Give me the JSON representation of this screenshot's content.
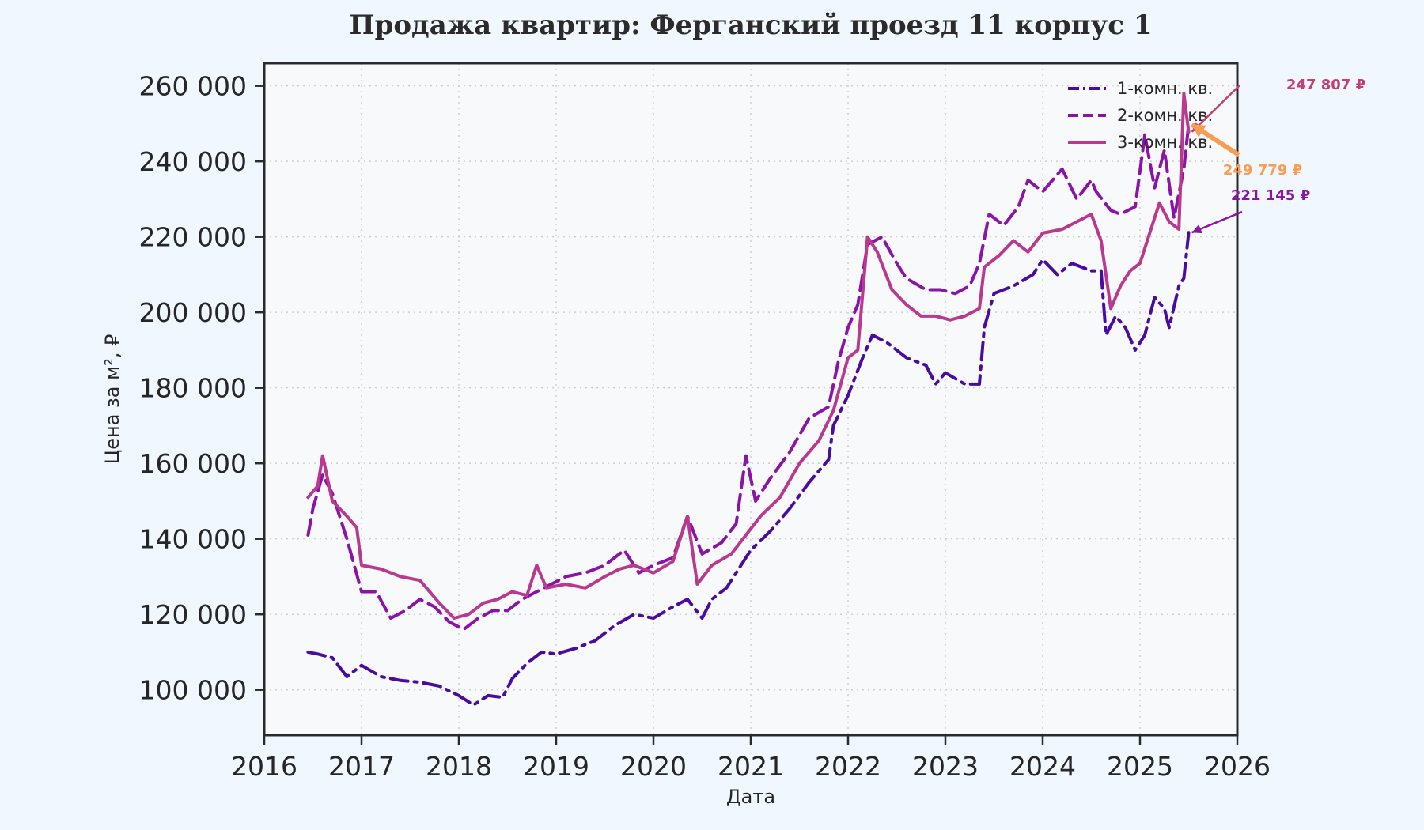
{
  "chart_data": {
    "type": "line",
    "title": "Продажа квартир: Ферганский проезд 11 корпус 1",
    "xlabel": "Дата",
    "ylabel": "Цена за м², ₽",
    "xlim": [
      2016,
      2026
    ],
    "ylim": [
      88000,
      266000
    ],
    "x_ticks": [
      "2016",
      "2017",
      "2018",
      "2019",
      "2020",
      "2021",
      "2022",
      "2023",
      "2024",
      "2025",
      "2026"
    ],
    "y_ticks": [
      "100 000",
      "120 000",
      "140 000",
      "160 000",
      "180 000",
      "200 000",
      "220 000",
      "240 000",
      "260 000"
    ],
    "grid": true,
    "legend_position": "top-right",
    "series": [
      {
        "name": "1-комн. кв.",
        "color": "#4a0ca0",
        "dash": "dashdot",
        "points": [
          [
            2016.45,
            110000
          ],
          [
            2016.55,
            109500
          ],
          [
            2016.7,
            108500
          ],
          [
            2016.85,
            103500
          ],
          [
            2017.0,
            106500
          ],
          [
            2017.2,
            103500
          ],
          [
            2017.4,
            102500
          ],
          [
            2017.6,
            102000
          ],
          [
            2017.8,
            101000
          ],
          [
            2018.0,
            98500
          ],
          [
            2018.15,
            96000
          ],
          [
            2018.3,
            98500
          ],
          [
            2018.45,
            98000
          ],
          [
            2018.55,
            103000
          ],
          [
            2018.7,
            107000
          ],
          [
            2018.85,
            110000
          ],
          [
            2019.0,
            109500
          ],
          [
            2019.2,
            111000
          ],
          [
            2019.4,
            113000
          ],
          [
            2019.6,
            117000
          ],
          [
            2019.8,
            120000
          ],
          [
            2020.0,
            119000
          ],
          [
            2020.2,
            122000
          ],
          [
            2020.35,
            124000
          ],
          [
            2020.5,
            119000
          ],
          [
            2020.6,
            124000
          ],
          [
            2020.75,
            127000
          ],
          [
            2020.9,
            133000
          ],
          [
            2021.0,
            137000
          ],
          [
            2021.2,
            142000
          ],
          [
            2021.4,
            148000
          ],
          [
            2021.6,
            155000
          ],
          [
            2021.8,
            161000
          ],
          [
            2021.85,
            170000
          ],
          [
            2022.0,
            178000
          ],
          [
            2022.15,
            188000
          ],
          [
            2022.25,
            194000
          ],
          [
            2022.4,
            192000
          ],
          [
            2022.6,
            188000
          ],
          [
            2022.8,
            186000
          ],
          [
            2022.9,
            181000
          ],
          [
            2023.0,
            184000
          ],
          [
            2023.2,
            181000
          ],
          [
            2023.35,
            181000
          ],
          [
            2023.4,
            196000
          ],
          [
            2023.5,
            205000
          ],
          [
            2023.7,
            207000
          ],
          [
            2023.9,
            210000
          ],
          [
            2024.0,
            214000
          ],
          [
            2024.15,
            210000
          ],
          [
            2024.3,
            213000
          ],
          [
            2024.5,
            211000
          ],
          [
            2024.6,
            211000
          ],
          [
            2024.65,
            194000
          ],
          [
            2024.75,
            199000
          ],
          [
            2024.85,
            196000
          ],
          [
            2024.95,
            190000
          ],
          [
            2025.05,
            194000
          ],
          [
            2025.15,
            204000
          ],
          [
            2025.25,
            201000
          ],
          [
            2025.3,
            196000
          ],
          [
            2025.4,
            207000
          ],
          [
            2025.45,
            209000
          ],
          [
            2025.5,
            221145
          ]
        ]
      },
      {
        "name": "2-комн. кв.",
        "color": "#8a14a8",
        "dash": "dashed",
        "points": [
          [
            2016.45,
            141000
          ],
          [
            2016.5,
            148000
          ],
          [
            2016.6,
            157000
          ],
          [
            2016.7,
            152000
          ],
          [
            2016.85,
            140000
          ],
          [
            2017.0,
            126000
          ],
          [
            2017.15,
            126000
          ],
          [
            2017.3,
            119000
          ],
          [
            2017.45,
            121000
          ],
          [
            2017.6,
            124000
          ],
          [
            2017.75,
            122000
          ],
          [
            2017.9,
            118000
          ],
          [
            2018.05,
            116000
          ],
          [
            2018.2,
            119000
          ],
          [
            2018.35,
            121000
          ],
          [
            2018.5,
            121000
          ],
          [
            2018.65,
            124000
          ],
          [
            2018.8,
            126000
          ],
          [
            2018.95,
            128000
          ],
          [
            2019.1,
            130000
          ],
          [
            2019.3,
            131000
          ],
          [
            2019.5,
            133000
          ],
          [
            2019.7,
            137000
          ],
          [
            2019.85,
            131000
          ],
          [
            2020.0,
            133000
          ],
          [
            2020.2,
            135000
          ],
          [
            2020.35,
            146000
          ],
          [
            2020.5,
            136000
          ],
          [
            2020.7,
            139000
          ],
          [
            2020.85,
            144000
          ],
          [
            2020.95,
            162000
          ],
          [
            2021.05,
            150000
          ],
          [
            2021.2,
            156000
          ],
          [
            2021.4,
            163000
          ],
          [
            2021.6,
            172000
          ],
          [
            2021.8,
            175000
          ],
          [
            2021.9,
            187000
          ],
          [
            2022.0,
            196000
          ],
          [
            2022.1,
            202000
          ],
          [
            2022.2,
            218000
          ],
          [
            2022.35,
            220000
          ],
          [
            2022.5,
            213000
          ],
          [
            2022.6,
            209000
          ],
          [
            2022.8,
            206000
          ],
          [
            2022.95,
            206000
          ],
          [
            2023.1,
            205000
          ],
          [
            2023.25,
            207000
          ],
          [
            2023.35,
            213000
          ],
          [
            2023.45,
            226000
          ],
          [
            2023.6,
            223000
          ],
          [
            2023.75,
            228000
          ],
          [
            2023.85,
            235000
          ],
          [
            2024.0,
            232000
          ],
          [
            2024.2,
            238000
          ],
          [
            2024.35,
            230000
          ],
          [
            2024.5,
            235000
          ],
          [
            2024.55,
            232000
          ],
          [
            2024.7,
            227000
          ],
          [
            2024.8,
            226000
          ],
          [
            2024.95,
            228000
          ],
          [
            2025.05,
            247000
          ],
          [
            2025.15,
            233000
          ],
          [
            2025.25,
            243000
          ],
          [
            2025.35,
            225000
          ],
          [
            2025.45,
            238000
          ],
          [
            2025.5,
            249779
          ]
        ]
      },
      {
        "name": "3-комн. кв.",
        "color": "#b8398e",
        "dash": "solid",
        "points": [
          [
            2016.45,
            151000
          ],
          [
            2016.55,
            154000
          ],
          [
            2016.6,
            162000
          ],
          [
            2016.7,
            150000
          ],
          [
            2016.85,
            146000
          ],
          [
            2016.95,
            143000
          ],
          [
            2017.0,
            133000
          ],
          [
            2017.2,
            132000
          ],
          [
            2017.4,
            130000
          ],
          [
            2017.6,
            129000
          ],
          [
            2017.8,
            123000
          ],
          [
            2017.95,
            119000
          ],
          [
            2018.1,
            120000
          ],
          [
            2018.25,
            123000
          ],
          [
            2018.4,
            124000
          ],
          [
            2018.55,
            126000
          ],
          [
            2018.7,
            125000
          ],
          [
            2018.8,
            133000
          ],
          [
            2018.9,
            127000
          ],
          [
            2019.1,
            128000
          ],
          [
            2019.3,
            127000
          ],
          [
            2019.5,
            130000
          ],
          [
            2019.65,
            132000
          ],
          [
            2019.8,
            133000
          ],
          [
            2020.0,
            131000
          ],
          [
            2020.2,
            134000
          ],
          [
            2020.35,
            146000
          ],
          [
            2020.45,
            128000
          ],
          [
            2020.6,
            133000
          ],
          [
            2020.8,
            136000
          ],
          [
            2020.95,
            141000
          ],
          [
            2021.1,
            146000
          ],
          [
            2021.3,
            151000
          ],
          [
            2021.5,
            160000
          ],
          [
            2021.7,
            166000
          ],
          [
            2021.85,
            174000
          ],
          [
            2022.0,
            188000
          ],
          [
            2022.1,
            190000
          ],
          [
            2022.2,
            220000
          ],
          [
            2022.3,
            216000
          ],
          [
            2022.45,
            206000
          ],
          [
            2022.6,
            202000
          ],
          [
            2022.75,
            199000
          ],
          [
            2022.9,
            199000
          ],
          [
            2023.05,
            198000
          ],
          [
            2023.2,
            199000
          ],
          [
            2023.35,
            201000
          ],
          [
            2023.4,
            212000
          ],
          [
            2023.55,
            215000
          ],
          [
            2023.7,
            219000
          ],
          [
            2023.85,
            216000
          ],
          [
            2024.0,
            221000
          ],
          [
            2024.2,
            222000
          ],
          [
            2024.35,
            224000
          ],
          [
            2024.5,
            226000
          ],
          [
            2024.6,
            219000
          ],
          [
            2024.7,
            201000
          ],
          [
            2024.8,
            207000
          ],
          [
            2024.9,
            211000
          ],
          [
            2025.0,
            213000
          ],
          [
            2025.1,
            221000
          ],
          [
            2025.2,
            229000
          ],
          [
            2025.3,
            224000
          ],
          [
            2025.4,
            222000
          ],
          [
            2025.45,
            258000
          ],
          [
            2025.5,
            247807
          ]
        ]
      }
    ],
    "annotations": [
      {
        "text": "247 807 ₽",
        "color": "#c53f74",
        "series": "3-комн. кв.",
        "x": 2025.5,
        "y": 247807
      },
      {
        "text": "249 779 ₽",
        "color": "#f59e54",
        "series": "2-комн. кв.",
        "x": 2025.5,
        "y": 249779
      },
      {
        "text": "221 145 ₽",
        "color": "#8a14a8",
        "series": "1-комн. кв.",
        "x": 2025.5,
        "y": 221145
      }
    ]
  }
}
